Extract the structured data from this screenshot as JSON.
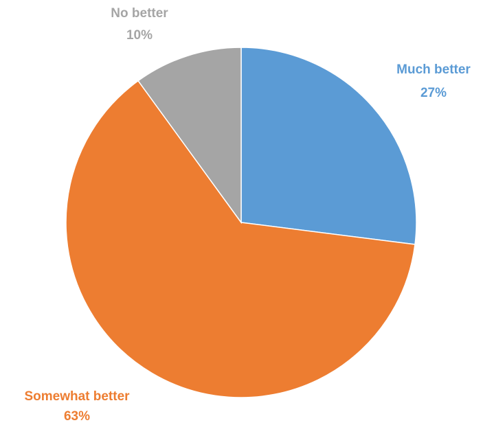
{
  "chart_data": {
    "type": "pie",
    "start_angle_deg": 0,
    "direction": "clockwise",
    "slices": [
      {
        "label": "Much better",
        "value": 27,
        "value_label": "27%",
        "color": "#5B9BD5"
      },
      {
        "label": "Somewhat better",
        "value": 63,
        "value_label": "63%",
        "color": "#ED7D31"
      },
      {
        "label": "No better",
        "value": 10,
        "value_label": "10%",
        "color": "#A5A5A5"
      }
    ]
  }
}
